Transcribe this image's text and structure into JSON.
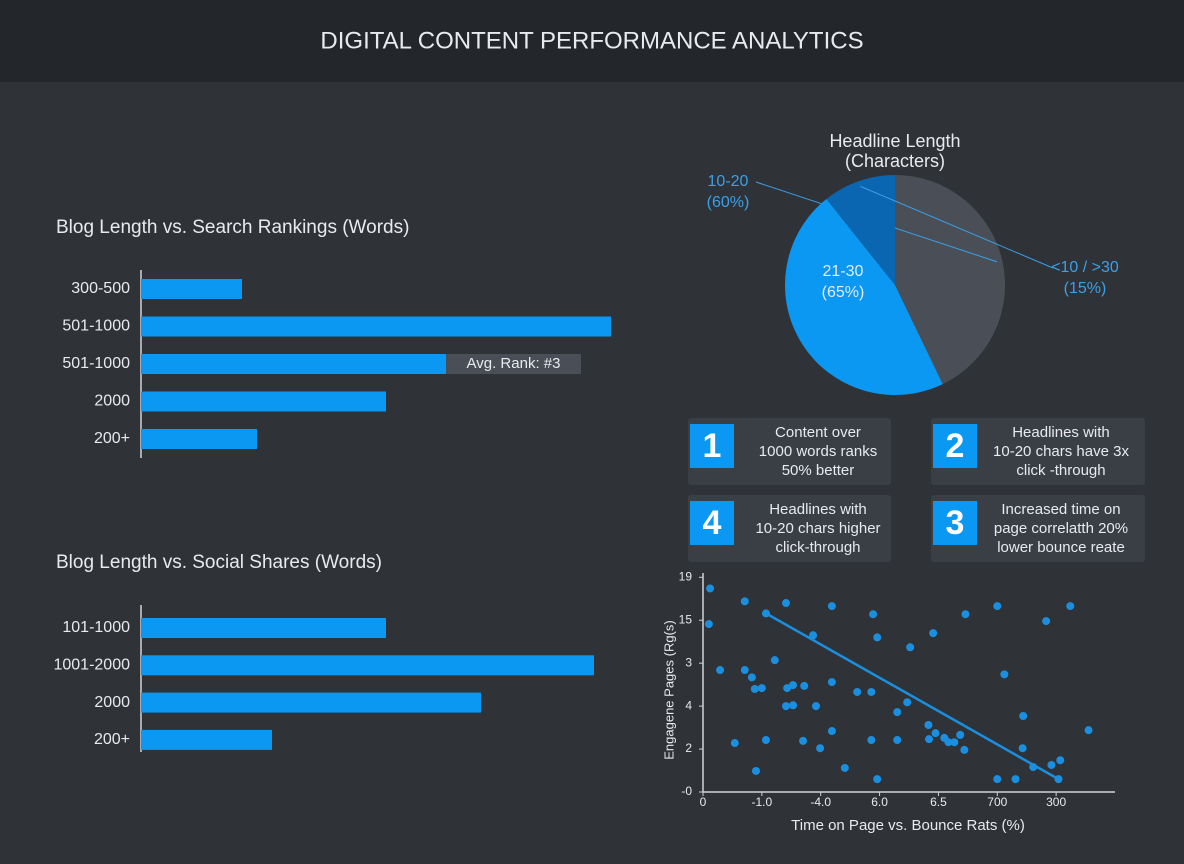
{
  "title": "DIGITAL CONTENT PERFORMANCE ANALYTICS",
  "chart_data": [
    {
      "type": "bar",
      "orientation": "horizontal",
      "title": "Blog Length vs. Search Rankings (Words)",
      "categories": [
        "300-500",
        "501-1000",
        "501-1000",
        "2000",
        "200+"
      ],
      "values": [
        101,
        470,
        305,
        245,
        116
      ],
      "color": "#0a98f2",
      "annotation": "Avg. Rank: #3"
    },
    {
      "type": "bar",
      "orientation": "horizontal",
      "title": "Blog Length vs. Social Shares (Words)",
      "categories": [
        "101-1000",
        "1001-2000",
        "2000",
        "200+"
      ],
      "values": [
        245,
        453,
        340,
        131
      ],
      "color": "#0a98f2"
    },
    {
      "type": "pie",
      "title": "Headline Length\n(Characters)",
      "categories": [
        "10-20",
        "21-30",
        "<10 / >30"
      ],
      "values": [
        60,
        65,
        15
      ],
      "value_labels": [
        "(60%)",
        "(65%)",
        "(15%)"
      ],
      "colors": [
        "#4a4f57",
        "#0a98f2",
        "#0a66b0"
      ]
    },
    {
      "type": "scatter",
      "x_label": "Time on Page vs. Bounce Rats (%)",
      "y_label": "Engagene Pages (Rg(s)",
      "color": "#1a8fe0",
      "xlim": [
        0,
        7
      ],
      "ylim": [
        0,
        5.1
      ],
      "xticks": [
        {
          "value": 0,
          "label": "0"
        },
        {
          "value": 1,
          "label": "-1.0"
        },
        {
          "value": 2,
          "label": "-4.0"
        },
        {
          "value": 3,
          "label": "6.0"
        },
        {
          "value": 4,
          "label": "6.5"
        },
        {
          "value": 5,
          "label": "700"
        },
        {
          "value": 6,
          "label": "300"
        }
      ],
      "yticks": [
        {
          "value": 0,
          "label": "-0"
        },
        {
          "value": 1,
          "label": "2"
        },
        {
          "value": 2,
          "label": "4"
        },
        {
          "value": 3,
          "label": "3"
        },
        {
          "value": 4,
          "label": "15"
        },
        {
          "value": 5,
          "label": "19"
        }
      ],
      "x": [
        0.12,
        0.1,
        0.29,
        0.71,
        1.41,
        2.19,
        2.89,
        4.46,
        5.0,
        5.83,
        6.24,
        1.07,
        1.87,
        2.96,
        3.91,
        3.52,
        1.22,
        0.71,
        0.83,
        0.88,
        1.0,
        1.43,
        1.53,
        1.72,
        2.19,
        2.62,
        2.86,
        5.12,
        1.41,
        1.53,
        1.92,
        3.3,
        3.47,
        5.44,
        3.83,
        3.95,
        4.1,
        4.37,
        4.17,
        4.27,
        3.84,
        3.3,
        2.86,
        2.19,
        1.99,
        1.7,
        1.07,
        0.54,
        5.43,
        6.55,
        6.07,
        5.92,
        5.61,
        4.44,
        2.41,
        0.9,
        2.96,
        5.0,
        5.31,
        6.04
      ],
      "y": [
        4.74,
        3.91,
        2.84,
        4.44,
        4.4,
        4.33,
        4.14,
        4.14,
        4.33,
        3.98,
        4.33,
        4.16,
        3.65,
        3.6,
        3.7,
        3.37,
        3.07,
        2.84,
        2.67,
        2.4,
        2.42,
        2.42,
        2.49,
        2.47,
        2.56,
        2.33,
        2.33,
        2.74,
        2.0,
        2.02,
        2.0,
        1.86,
        2.09,
        1.77,
        1.56,
        1.37,
        1.26,
        1.33,
        1.16,
        1.16,
        1.23,
        1.21,
        1.21,
        1.42,
        1.02,
        1.19,
        1.21,
        1.14,
        1.02,
        1.44,
        0.74,
        0.63,
        0.58,
        0.98,
        0.56,
        0.49,
        0.3,
        0.3,
        0.3,
        0.3
      ],
      "trendline": {
        "x": [
          1.07,
          6.04
        ],
        "y": [
          4.16,
          0.3
        ]
      }
    }
  ],
  "cards": [
    {
      "number": "1",
      "lines": [
        "Content over",
        "1000 words ranks",
        "50% better"
      ]
    },
    {
      "number": "2",
      "lines": [
        "Headlines with",
        "10-20 chars have 3x",
        "click -through"
      ]
    },
    {
      "number": "4",
      "lines": [
        "Headlines with",
        "10-20 chars higher",
        "click-through"
      ]
    },
    {
      "number": "3",
      "lines": [
        "Increased time on",
        "page correlatth 20%",
        "lower bounce reate"
      ]
    }
  ]
}
